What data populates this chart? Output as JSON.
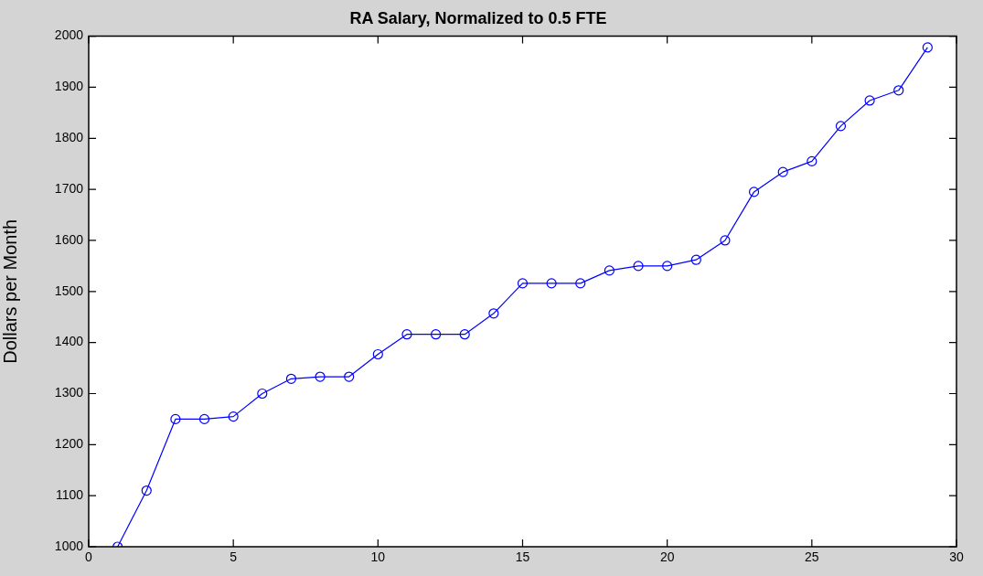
{
  "chart_data": {
    "type": "line",
    "title": "RA Salary, Normalized to 0.5 FTE",
    "ylabel": "Dollars per Month",
    "x": [
      1,
      2,
      3,
      4,
      5,
      6,
      7,
      8,
      9,
      10,
      11,
      12,
      13,
      14,
      15,
      16,
      17,
      18,
      19,
      20,
      21,
      22,
      23,
      24,
      25,
      26,
      27,
      28,
      29
    ],
    "series": [
      {
        "color": "#0000ff",
        "values": [
          1000,
          1110,
          1250,
          1250,
          1255,
          1300,
          1329,
          1333,
          1333,
          1377,
          1416,
          1416,
          1416,
          1457,
          1516,
          1516,
          1516,
          1541,
          1550,
          1550,
          1562,
          1600,
          1695,
          1734,
          1755,
          1824,
          1874,
          1894,
          1978
        ]
      }
    ],
    "xlim": [
      0,
      30
    ],
    "xticks": [
      0,
      5,
      10,
      15,
      20,
      25,
      30
    ],
    "ylim": [
      1000,
      2000
    ],
    "yticks": [
      1000,
      1100,
      1200,
      1300,
      1400,
      1500,
      1600,
      1700,
      1800,
      1900,
      2000
    ],
    "grid": false,
    "legend": false,
    "marker": "circle",
    "line_style": "solid"
  }
}
